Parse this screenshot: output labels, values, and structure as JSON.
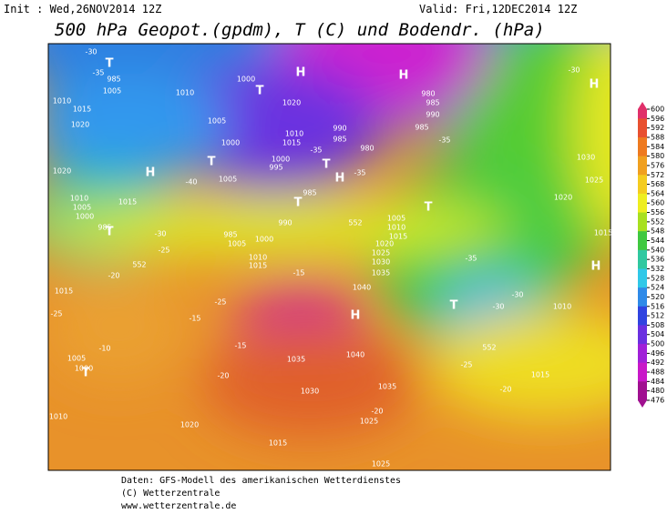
{
  "header": {
    "init": "Init : Wed,26NOV2014 12Z",
    "valid": "Valid: Fri,12DEC2014 12Z",
    "title": "500 hPa Geopot.(gpdm), T (C) und Bodendr. (hPa)"
  },
  "map": {
    "labels": [
      "985",
      "1005",
      "1010",
      "1015",
      "1020",
      "1000",
      "1010",
      "1005",
      "1020",
      "1015",
      "1010",
      "1000",
      "1000",
      "995",
      "1005",
      "985",
      "990",
      "985",
      "980",
      "980",
      "985",
      "990",
      "985",
      "1020",
      "1010",
      "1005",
      "1000",
      "985",
      "1015",
      "990",
      "985",
      "1005",
      "1000",
      "1010",
      "1015",
      "1005",
      "1010",
      "1015",
      "1020",
      "1025",
      "1030",
      "1035",
      "1040",
      "1040",
      "1035",
      "1030",
      "1035",
      "1025",
      "1020",
      "1015",
      "1015",
      "1005",
      "1000",
      "1010",
      "1025",
      "1015",
      "1010",
      "1030",
      "1025",
      "1020",
      "1015",
      "-30",
      "-35",
      "-40",
      "-35",
      "-35",
      "-35",
      "-30",
      "-30",
      "-25",
      "-20",
      "-25",
      "-25",
      "-15",
      "-15",
      "-15",
      "-10",
      "-20",
      "-20",
      "-20",
      "-25",
      "-30",
      "-30",
      "-35",
      "552",
      "552",
      "552",
      "H",
      "H",
      "H",
      "H",
      "H",
      "H",
      "H",
      "T",
      "T",
      "T",
      "T",
      "T",
      "T",
      "T",
      "T",
      "T"
    ]
  },
  "colorbar": {
    "ticks": [
      600,
      596,
      592,
      588,
      584,
      580,
      576,
      572,
      568,
      564,
      560,
      556,
      552,
      548,
      544,
      540,
      536,
      532,
      528,
      524,
      520,
      516,
      512,
      508,
      504,
      500,
      496,
      492,
      488,
      484,
      480,
      476
    ]
  },
  "footer": {
    "lines": [
      "Daten: GFS-Modell des amerikanischen Wetterdienstes",
      "(C) Wetterzentrale",
      "www.wetterzentrale.de"
    ]
  }
}
